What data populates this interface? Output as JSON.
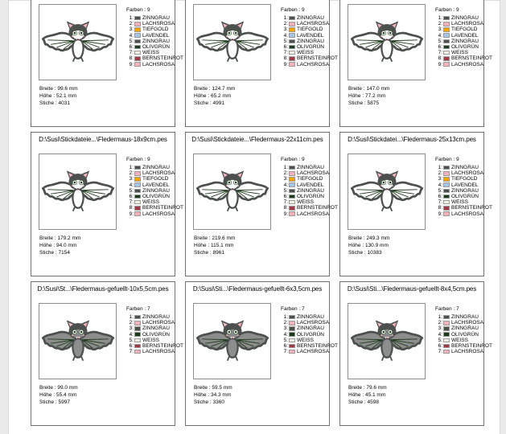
{
  "window": {
    "background": "#ffffff",
    "margin_strip_color": "#eaeaea",
    "cell_border_color": "#6e6e6e"
  },
  "palette": {
    "zinngrau": "#4c504e",
    "lachsrosa": "#f2b3ba",
    "tiefgold": "#f6a400",
    "lavendel": "#a9c4e2",
    "olivgruen": "#1c3a1c",
    "weiss": "#f4f0e1",
    "bernsteinrot": "#a03a46"
  },
  "cells": [
    {
      "title": "",
      "farben": "Farben : 9",
      "colors": [
        {
          "n": "1:",
          "name": "ZINNGRAU",
          "hex": "#4c504e"
        },
        {
          "n": "2:",
          "name": "LACHSROSA",
          "hex": "#f2b3ba"
        },
        {
          "n": "3:",
          "name": "TIEFGOLD",
          "hex": "#f6a400"
        },
        {
          "n": "4:",
          "name": "LAVENDEL",
          "hex": "#a9c4e2"
        },
        {
          "n": "5:",
          "name": "ZINNGRAU",
          "hex": "#4c504e"
        },
        {
          "n": "6:",
          "name": "OLIVGRÜN",
          "hex": "#1c3a1c"
        },
        {
          "n": "7:",
          "name": "WEISS",
          "hex": "#f4f0e1"
        },
        {
          "n": "8:",
          "name": "BERNSTEINROT",
          "hex": "#a03a46"
        },
        {
          "n": "9:",
          "name": "LACHSROSA",
          "hex": "#f2b3ba"
        }
      ],
      "breite": "Breite : 99.6 mm",
      "hoehe": "Höhe : 52.1 mm",
      "stiche": "Stiche : 4031",
      "variant": "outline"
    },
    {
      "title": "",
      "farben": "Farben : 9",
      "colors": [
        {
          "n": "1:",
          "name": "ZINNGRAU",
          "hex": "#4c504e"
        },
        {
          "n": "2:",
          "name": "LACHSROSA",
          "hex": "#f2b3ba"
        },
        {
          "n": "3:",
          "name": "TIEFGOLD",
          "hex": "#f6a400"
        },
        {
          "n": "4:",
          "name": "LAVENDEL",
          "hex": "#a9c4e2"
        },
        {
          "n": "5:",
          "name": "ZINNGRAU",
          "hex": "#4c504e"
        },
        {
          "n": "6:",
          "name": "OLIVGRÜN",
          "hex": "#1c3a1c"
        },
        {
          "n": "7:",
          "name": "WEISS",
          "hex": "#f4f0e1"
        },
        {
          "n": "8:",
          "name": "BERNSTEINROT",
          "hex": "#a03a46"
        },
        {
          "n": "9:",
          "name": "LACHSROSA",
          "hex": "#f2b3ba"
        }
      ],
      "breite": "Breite : 124.7 mm",
      "hoehe": "Höhe : 65.2 mm",
      "stiche": "Stiche : 4991",
      "variant": "outline"
    },
    {
      "title": "",
      "farben": "Farben : 9",
      "colors": [
        {
          "n": "1:",
          "name": "ZINNGRAU",
          "hex": "#4c504e"
        },
        {
          "n": "2:",
          "name": "LACHSROSA",
          "hex": "#f2b3ba"
        },
        {
          "n": "3:",
          "name": "TIEFGOLD",
          "hex": "#f6a400"
        },
        {
          "n": "4:",
          "name": "LAVENDEL",
          "hex": "#a9c4e2"
        },
        {
          "n": "5:",
          "name": "ZINNGRAU",
          "hex": "#4c504e"
        },
        {
          "n": "6:",
          "name": "OLIVGRÜN",
          "hex": "#1c3a1c"
        },
        {
          "n": "7:",
          "name": "WEISS",
          "hex": "#f4f0e1"
        },
        {
          "n": "8:",
          "name": "BERNSTEINROT",
          "hex": "#a03a46"
        },
        {
          "n": "9:",
          "name": "LACHSROSA",
          "hex": "#f2b3ba"
        }
      ],
      "breite": "Breite : 147.0 mm",
      "hoehe": "Höhe : 77.2 mm",
      "stiche": "Stiche : 5875",
      "variant": "outline"
    },
    {
      "title": "D:\\Susi\\Stickdateie...\\Fledermaus-18x9cm.pes",
      "farben": "Farben : 9",
      "colors": [
        {
          "n": "1:",
          "name": "ZINNGRAU",
          "hex": "#4c504e"
        },
        {
          "n": "2:",
          "name": "LACHSROSA",
          "hex": "#f2b3ba"
        },
        {
          "n": "3:",
          "name": "TIEFGOLD",
          "hex": "#f6a400"
        },
        {
          "n": "4:",
          "name": "LAVENDEL",
          "hex": "#a9c4e2"
        },
        {
          "n": "5:",
          "name": "ZINNGRAU",
          "hex": "#4c504e"
        },
        {
          "n": "6:",
          "name": "OLIVGRÜN",
          "hex": "#1c3a1c"
        },
        {
          "n": "7:",
          "name": "WEISS",
          "hex": "#f4f0e1"
        },
        {
          "n": "8:",
          "name": "BERNSTEINROT",
          "hex": "#a03a46"
        },
        {
          "n": "9:",
          "name": "LACHSROSA",
          "hex": "#f2b3ba"
        }
      ],
      "breite": "Breite : 179.2 mm",
      "hoehe": "Höhe : 94.0 mm",
      "stiche": "Stiche : 7154",
      "variant": "outline"
    },
    {
      "title": "D:\\Susi\\Stickdateie...\\Fledermaus-22x11cm.pes",
      "farben": "Farben : 9",
      "colors": [
        {
          "n": "1:",
          "name": "ZINNGRAU",
          "hex": "#4c504e"
        },
        {
          "n": "2:",
          "name": "LACHSROSA",
          "hex": "#f2b3ba"
        },
        {
          "n": "3:",
          "name": "TIEFGOLD",
          "hex": "#f6a400"
        },
        {
          "n": "4:",
          "name": "LAVENDEL",
          "hex": "#a9c4e2"
        },
        {
          "n": "5:",
          "name": "ZINNGRAU",
          "hex": "#4c504e"
        },
        {
          "n": "6:",
          "name": "OLIVGRÜN",
          "hex": "#1c3a1c"
        },
        {
          "n": "7:",
          "name": "WEISS",
          "hex": "#f4f0e1"
        },
        {
          "n": "8:",
          "name": "BERNSTEINROT",
          "hex": "#a03a46"
        },
        {
          "n": "9:",
          "name": "LACHSROSA",
          "hex": "#f2b3ba"
        }
      ],
      "breite": "Breite : 219.6 mm",
      "hoehe": "Höhe : 115.1 mm",
      "stiche": "Stiche : 8961",
      "variant": "outline"
    },
    {
      "title": "D:\\Susi\\Stickdatei...\\Fledermaus-25x13cm.pes",
      "farben": "Farben : 9",
      "colors": [
        {
          "n": "1:",
          "name": "ZINNGRAU",
          "hex": "#4c504e"
        },
        {
          "n": "2:",
          "name": "LACHSROSA",
          "hex": "#f2b3ba"
        },
        {
          "n": "3:",
          "name": "TIEFGOLD",
          "hex": "#f6a400"
        },
        {
          "n": "4:",
          "name": "LAVENDEL",
          "hex": "#a9c4e2"
        },
        {
          "n": "5:",
          "name": "ZINNGRAU",
          "hex": "#4c504e"
        },
        {
          "n": "6:",
          "name": "OLIVGRÜN",
          "hex": "#1c3a1c"
        },
        {
          "n": "7:",
          "name": "WEISS",
          "hex": "#f4f0e1"
        },
        {
          "n": "8:",
          "name": "BERNSTEINROT",
          "hex": "#a03a46"
        },
        {
          "n": "9:",
          "name": "LACHSROSA",
          "hex": "#f2b3ba"
        }
      ],
      "breite": "Breite : 249.3 mm",
      "hoehe": "Höhe : 130.9 mm",
      "stiche": "Stiche : 10383",
      "variant": "outline"
    },
    {
      "title": "D:\\Susi\\St...\\Fledermaus-gefuellt-10x5,5cm.pes",
      "farben": "Farben : 7",
      "colors": [
        {
          "n": "1:",
          "name": "ZINNGRAU",
          "hex": "#4c504e"
        },
        {
          "n": "2:",
          "name": "LACHSROSA",
          "hex": "#f2b3ba"
        },
        {
          "n": "3:",
          "name": "ZINNGRAU",
          "hex": "#4c504e"
        },
        {
          "n": "4:",
          "name": "OLIVGRÜN",
          "hex": "#1c3a1c"
        },
        {
          "n": "5:",
          "name": "WEISS",
          "hex": "#f4f0e1"
        },
        {
          "n": "6:",
          "name": "BERNSTEINROT",
          "hex": "#a03a46"
        },
        {
          "n": "7:",
          "name": "LACHSROSA",
          "hex": "#f2b3ba"
        }
      ],
      "breite": "Breite : 99.0 mm",
      "hoehe": "Höhe : 55.4 mm",
      "stiche": "Stiche : 5997",
      "variant": "filled"
    },
    {
      "title": "D:\\Susi\\Sti...\\Fledermaus-gefuellt-6x3,5cm.pes",
      "farben": "Farben : 7",
      "colors": [
        {
          "n": "1:",
          "name": "ZINNGRAU",
          "hex": "#4c504e"
        },
        {
          "n": "2:",
          "name": "LACHSROSA",
          "hex": "#f2b3ba"
        },
        {
          "n": "3:",
          "name": "ZINNGRAU",
          "hex": "#4c504e"
        },
        {
          "n": "4:",
          "name": "OLIVGRÜN",
          "hex": "#1c3a1c"
        },
        {
          "n": "5:",
          "name": "WEISS",
          "hex": "#f4f0e1"
        },
        {
          "n": "6:",
          "name": "BERNSTEINROT",
          "hex": "#a03a46"
        },
        {
          "n": "7:",
          "name": "LACHSROSA",
          "hex": "#f2b3ba"
        }
      ],
      "breite": "Breite : 59.5 mm",
      "hoehe": "Höhe : 34.3 mm",
      "stiche": "Stiche : 3360",
      "variant": "filled"
    },
    {
      "title": "D:\\Susi\\Sti...\\Fledermaus-gefuellt-8x4,5cm.pes",
      "farben": "Farben : 7",
      "colors": [
        {
          "n": "1:",
          "name": "ZINNGRAU",
          "hex": "#4c504e"
        },
        {
          "n": "2:",
          "name": "LACHSROSA",
          "hex": "#f2b3ba"
        },
        {
          "n": "3:",
          "name": "ZINNGRAU",
          "hex": "#4c504e"
        },
        {
          "n": "4:",
          "name": "OLIVGRÜN",
          "hex": "#1c3a1c"
        },
        {
          "n": "5:",
          "name": "WEISS",
          "hex": "#f4f0e1"
        },
        {
          "n": "6:",
          "name": "BERNSTEINROT",
          "hex": "#a03a46"
        },
        {
          "n": "7:",
          "name": "LACHSROSA",
          "hex": "#f2b3ba"
        }
      ],
      "breite": "Breite : 79.6 mm",
      "hoehe": "Höhe : 45.1 mm",
      "stiche": "Stiche : 4598",
      "variant": "filled"
    }
  ]
}
